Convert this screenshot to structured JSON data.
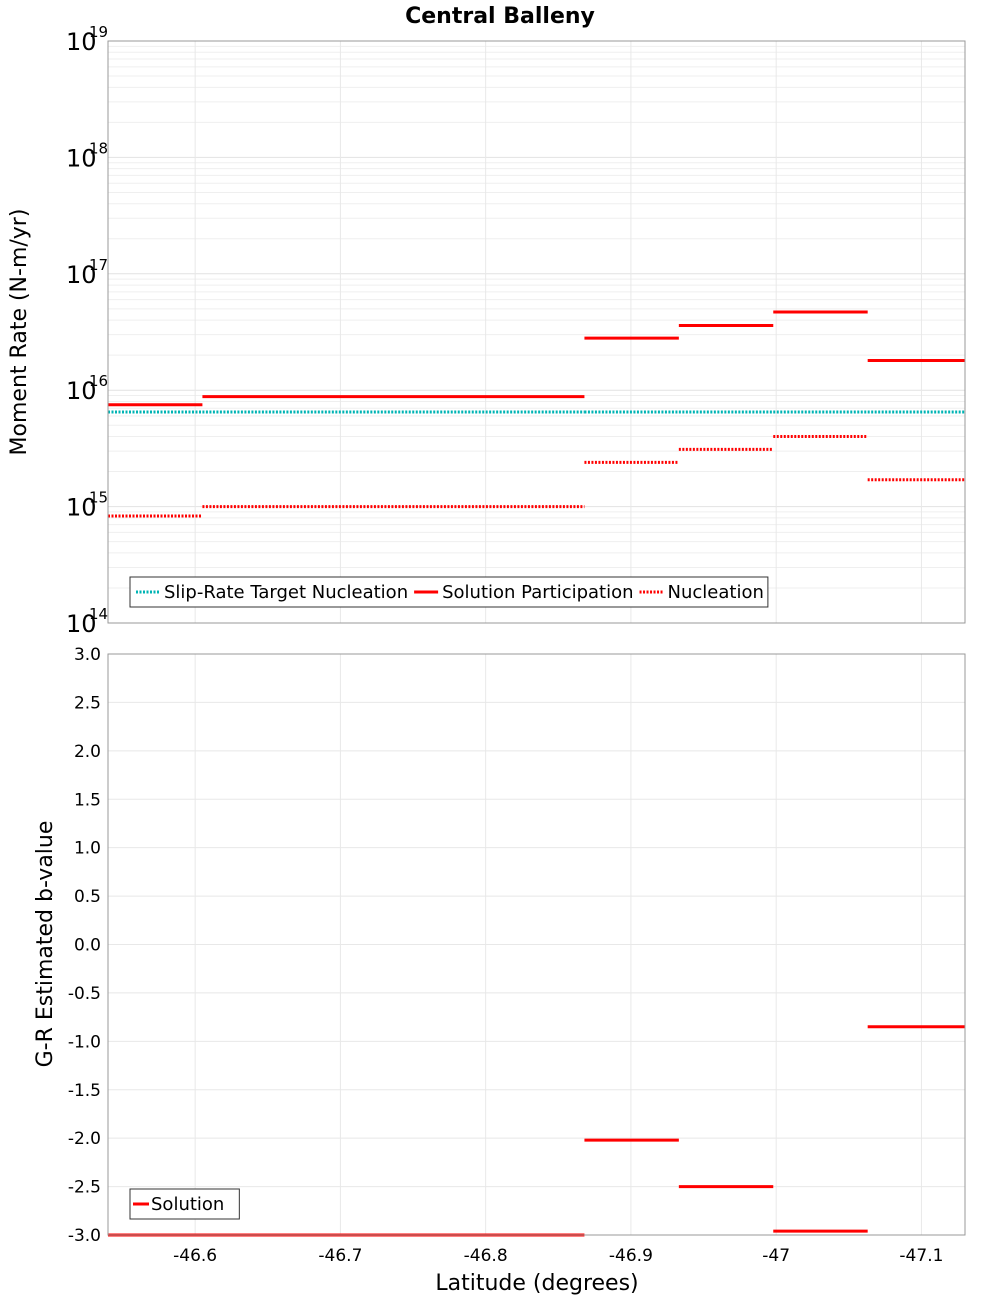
{
  "chart_data": [
    {
      "type": "line",
      "title": "Central Balleny",
      "xlabel": "Latitude (degrees)",
      "ylabel": "Moment Rate (N-m/yr)",
      "yscale": "log",
      "ylim": [
        100000000000000.0,
        1e+19
      ],
      "xlim": [
        -46.54,
        -47.13
      ],
      "x_reversed": true,
      "x_ticks": [
        "-46.6",
        "-46.7",
        "-46.8",
        "-46.9",
        "-47",
        "-47.1"
      ],
      "x_tick_values": [
        -46.6,
        -46.7,
        -46.8,
        -46.9,
        -47.0,
        -47.1
      ],
      "y_tick_exponents": [
        "14",
        "15",
        "16",
        "17",
        "18",
        "19"
      ],
      "y_tick_base": "10",
      "grid": true,
      "legend_position": "bottom-left",
      "series": [
        {
          "name": "Slip-Rate Target Nucleation",
          "style": "dotted",
          "color": "#00b4b4",
          "segments": [
            {
              "x": [
                -46.54,
                -46.605
              ],
              "y": 6500000000000000.0
            },
            {
              "x": [
                -46.605,
                -46.67
              ],
              "y": 6500000000000000.0
            },
            {
              "x": [
                -46.67,
                -46.735
              ],
              "y": 6500000000000000.0
            },
            {
              "x": [
                -46.735,
                -46.8
              ],
              "y": 6500000000000000.0
            },
            {
              "x": [
                -46.8,
                -46.868
              ],
              "y": 6500000000000000.0
            },
            {
              "x": [
                -46.868,
                -46.933
              ],
              "y": 6500000000000000.0
            },
            {
              "x": [
                -46.933,
                -46.998
              ],
              "y": 6500000000000000.0
            },
            {
              "x": [
                -46.998,
                -47.063
              ],
              "y": 6500000000000000.0
            },
            {
              "x": [
                -47.063,
                -47.13
              ],
              "y": 6500000000000000.0
            }
          ]
        },
        {
          "name": "Solution Participation",
          "style": "solid",
          "color": "#ff0000",
          "segments": [
            {
              "x": [
                -46.54,
                -46.605
              ],
              "y": 7500000000000000.0
            },
            {
              "x": [
                -46.605,
                -46.868
              ],
              "y": 8800000000000000.0
            },
            {
              "x": [
                -46.868,
                -46.933
              ],
              "y": 2.8e+16
            },
            {
              "x": [
                -46.933,
                -46.998
              ],
              "y": 3.6e+16
            },
            {
              "x": [
                -46.998,
                -47.063
              ],
              "y": 4.7e+16
            },
            {
              "x": [
                -47.063,
                -47.13
              ],
              "y": 1.8e+16
            }
          ]
        },
        {
          "name": "Nucleation",
          "style": "dotted",
          "color": "#ff0000",
          "segments": [
            {
              "x": [
                -46.54,
                -46.605
              ],
              "y": 830000000000000.0
            },
            {
              "x": [
                -46.605,
                -46.868
              ],
              "y": 1000000000000000.0
            },
            {
              "x": [
                -46.868,
                -46.933
              ],
              "y": 2400000000000000.0
            },
            {
              "x": [
                -46.933,
                -46.998
              ],
              "y": 3100000000000000.0
            },
            {
              "x": [
                -46.998,
                -47.063
              ],
              "y": 4000000000000000.0
            },
            {
              "x": [
                -47.063,
                -47.13
              ],
              "y": 1700000000000000.0
            }
          ]
        }
      ]
    },
    {
      "type": "line",
      "title": "",
      "xlabel": "Latitude (degrees)",
      "ylabel": "G-R Estimated b-value",
      "ylim": [
        -3.0,
        3.0
      ],
      "xlim": [
        -46.54,
        -47.13
      ],
      "x_reversed": true,
      "x_ticks": [
        "-46.6",
        "-46.7",
        "-46.8",
        "-46.9",
        "-47",
        "-47.1"
      ],
      "x_tick_values": [
        -46.6,
        -46.7,
        -46.8,
        -46.9,
        -47.0,
        -47.1
      ],
      "y_ticks": [
        "3.0",
        "2.5",
        "2.0",
        "1.5",
        "1.0",
        "0.5",
        "0.0",
        "-0.5",
        "-1.0",
        "-1.5",
        "-2.0",
        "-2.5",
        "-3.0"
      ],
      "y_tick_values": [
        3.0,
        2.5,
        2.0,
        1.5,
        1.0,
        0.5,
        0.0,
        -0.5,
        -1.0,
        -1.5,
        -2.0,
        -2.5,
        -3.0
      ],
      "grid": true,
      "legend_position": "bottom-left",
      "series": [
        {
          "name": "Solution",
          "style": "solid",
          "color": "#ff0000",
          "segments": [
            {
              "x": [
                -46.54,
                -46.868
              ],
              "y": -3.0
            },
            {
              "x": [
                -46.868,
                -46.933
              ],
              "y": -2.02
            },
            {
              "x": [
                -46.933,
                -46.998
              ],
              "y": -2.5
            },
            {
              "x": [
                -46.998,
                -47.063
              ],
              "y": -2.96
            },
            {
              "x": [
                -47.063,
                -47.13
              ],
              "y": -0.85
            }
          ]
        }
      ]
    }
  ]
}
